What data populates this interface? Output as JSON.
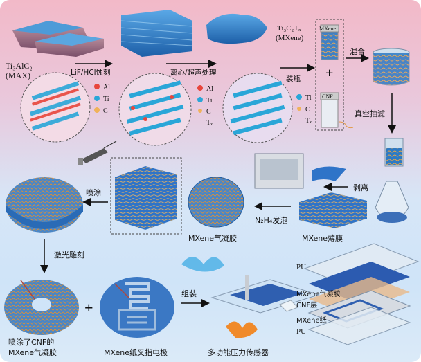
{
  "labels": {
    "max_formula": "Ti₃AlC₂",
    "max_name": "(MAX)",
    "etch": "LiF/HCl蚀刻",
    "centrifuge": "离心/超声处理",
    "mxene_formula": "Ti₃C₂Tₓ",
    "mxene_name": "(MXene)",
    "bottle": "装瓶",
    "mix": "混合",
    "vacuum_filter": "真空抽滤",
    "peel": "剥离",
    "foam": "N₂H₄发泡",
    "spray": "喷涂",
    "laser": "激光雕刻",
    "assemble": "组装",
    "aerogel": "MXene气凝胶",
    "film": "MXene薄膜",
    "sprayed_aerogel_1": "喷涂了CNF的",
    "sprayed_aerogel_2": "MXene气凝胶",
    "electrode": "MXene纸叉指电极",
    "sensor": "多功能压力传感器",
    "vial_mxene": "MXene",
    "vial_cnf": "CNF",
    "plus": "+"
  },
  "legend1": {
    "al": "Al",
    "ti": "Ti",
    "c": "C"
  },
  "legend2": {
    "al": "Al",
    "ti": "Ti",
    "c": "C",
    "tx": "Tₓ"
  },
  "legend3": {
    "ti": "Ti",
    "c": "C",
    "tx": "Tₓ"
  },
  "layers": [
    "PU",
    "MXene气凝胶",
    "CNF层",
    "MXene纸",
    "PU"
  ],
  "colors": {
    "al": "#e8463c",
    "ti": "#2aa6d8",
    "c": "#f0b25a",
    "mxene_blue": "#2f74c8"
  }
}
